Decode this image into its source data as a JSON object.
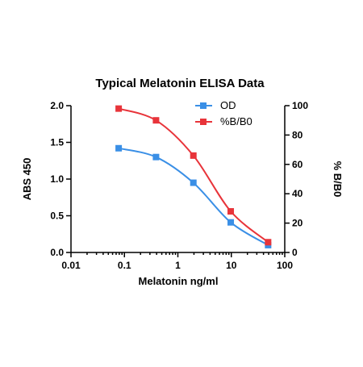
{
  "chart_data": {
    "type": "line",
    "title": "Typical Melatonin ELISA Data",
    "xlabel": "Melatonin ng/ml",
    "ylabel": "ABS 450",
    "y2label": "% B/B0",
    "xscale": "log",
    "xlim": [
      0.01,
      100
    ],
    "ylim": [
      0,
      2.0
    ],
    "y2lim": [
      0,
      100
    ],
    "x_ticks": [
      "0.01",
      "0.1",
      "1",
      "10",
      "100"
    ],
    "y_ticks": [
      "0.0",
      "0.5",
      "1.0",
      "1.5",
      "2.0"
    ],
    "y2_ticks": [
      "0",
      "20",
      "40",
      "60",
      "80",
      "100"
    ],
    "grid": false,
    "legend_position": "top-right",
    "x": [
      0.078,
      0.39,
      1.95,
      9.75,
      48.8
    ],
    "series": [
      {
        "name": "OD",
        "axis": "left",
        "color": "#3a8fe6",
        "marker": "square",
        "values": [
          1.42,
          1.3,
          0.95,
          0.41,
          0.1
        ]
      },
      {
        "name": "%B/B0",
        "axis": "right",
        "color": "#e8343a",
        "marker": "square",
        "values": [
          98,
          90,
          66,
          28,
          7
        ]
      }
    ]
  }
}
